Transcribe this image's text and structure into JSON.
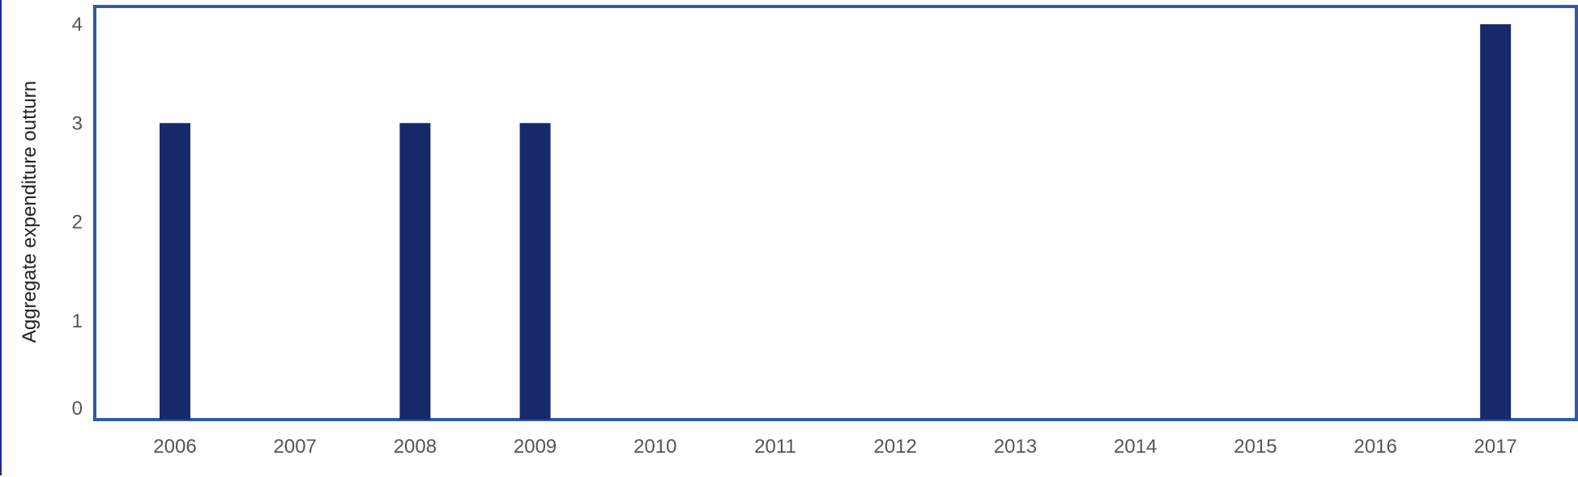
{
  "chart_data": {
    "type": "bar",
    "title": "",
    "xlabel": "",
    "ylabel": "Aggregate expenditure outturn",
    "categories": [
      "2006",
      "2007",
      "2008",
      "2009",
      "2010",
      "2011",
      "2012",
      "2013",
      "2014",
      "2015",
      "2016",
      "2017"
    ],
    "values": [
      3,
      0,
      3,
      3,
      0,
      0,
      0,
      0,
      0,
      0,
      0,
      4
    ],
    "yticks": [
      "0",
      "1",
      "2",
      "3",
      "4"
    ],
    "ylim": [
      0,
      4
    ],
    "grid": false,
    "legend": "none",
    "bar_color": "#17296a",
    "frame_color": "#2f5aa8"
  }
}
